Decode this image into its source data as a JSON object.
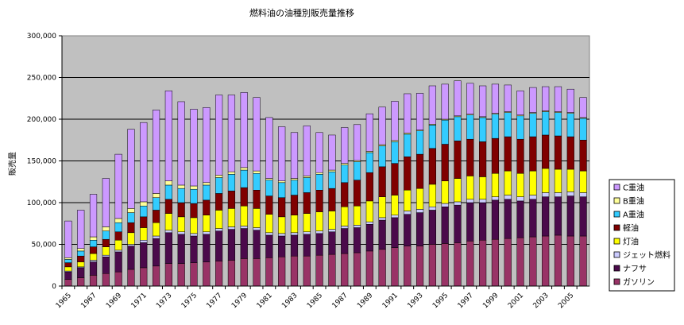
{
  "chart_data": {
    "type": "bar",
    "stacked": true,
    "title": "燃料油の油種別販売量推移",
    "ylabel": "販売量",
    "xlabel": "",
    "ylim": [
      0,
      300000
    ],
    "yticks": [
      0,
      50000,
      100000,
      150000,
      200000,
      250000,
      300000
    ],
    "ytick_labels": [
      "0",
      "50,000",
      "100,000",
      "150,000",
      "200,000",
      "250,000",
      "300,000"
    ],
    "grid": true,
    "legend_position": "right",
    "categories": [
      "1965",
      "1966",
      "1967",
      "1968",
      "1969",
      "1970",
      "1971",
      "1972",
      "1973",
      "1974",
      "1975",
      "1976",
      "1977",
      "1978",
      "1979",
      "1980",
      "1981",
      "1982",
      "1983",
      "1984",
      "1985",
      "1986",
      "1987",
      "1988",
      "1989",
      "1990",
      "1991",
      "1992",
      "1993",
      "1994",
      "1995",
      "1996",
      "1997",
      "1998",
      "1999",
      "2000",
      "2001",
      "2002",
      "2003",
      "2004",
      "2005",
      "2006"
    ],
    "xtick_labels": [
      "1965",
      "",
      "1967",
      "",
      "1969",
      "",
      "1971",
      "",
      "1973",
      "",
      "1975",
      "",
      "1977",
      "",
      "1979",
      "",
      "1981",
      "",
      "1983",
      "",
      "1985",
      "",
      "1987",
      "",
      "1989",
      "",
      "1991",
      "",
      "1993",
      "",
      "1995",
      "",
      "1997",
      "",
      "1999",
      "",
      "2001",
      "",
      "2003",
      "",
      "2005",
      ""
    ],
    "series": [
      {
        "name": "ガソリン",
        "color": "#993366",
        "values": [
          8000,
          10000,
          13000,
          15000,
          17000,
          20000,
          22000,
          24000,
          27000,
          27000,
          28000,
          29000,
          30000,
          31000,
          33000,
          33000,
          34000,
          35000,
          36000,
          36000,
          37000,
          38000,
          39000,
          40000,
          42000,
          44000,
          46000,
          48000,
          48000,
          50000,
          51000,
          52000,
          54000,
          55000,
          56000,
          57000,
          58000,
          59000,
          60000,
          61000,
          60000,
          60000
        ]
      },
      {
        "name": "ナフサ",
        "color": "#4B0A4B",
        "values": [
          9000,
          12000,
          16000,
          20000,
          24000,
          28000,
          30000,
          33000,
          37000,
          35000,
          32000,
          33000,
          36000,
          37000,
          36000,
          34000,
          27000,
          25000,
          25000,
          26000,
          26000,
          27000,
          30000,
          30000,
          32000,
          35000,
          36000,
          38000,
          40000,
          41000,
          44000,
          45000,
          46000,
          45000,
          47000,
          47000,
          44000,
          45000,
          47000,
          46000,
          48000,
          47000
        ]
      },
      {
        "name": "ジェット燃料",
        "color": "#CCCCFF",
        "values": [
          1000,
          1000,
          2000,
          2000,
          2000,
          2000,
          3000,
          3000,
          3000,
          3000,
          3000,
          3000,
          3000,
          3000,
          3000,
          3000,
          3000,
          3000,
          3000,
          3000,
          3000,
          3000,
          3000,
          3000,
          3000,
          3000,
          3000,
          4000,
          4000,
          4000,
          4000,
          4000,
          4000,
          4000,
          4000,
          5000,
          5000,
          5000,
          5000,
          5000,
          5000,
          5000
        ]
      },
      {
        "name": "灯油",
        "color": "#FFFF00",
        "values": [
          5000,
          6000,
          8000,
          10000,
          12000,
          14000,
          15000,
          16000,
          20000,
          18000,
          19000,
          20000,
          22000,
          22000,
          24000,
          23000,
          22000,
          20000,
          21000,
          22000,
          23000,
          22000,
          23000,
          23000,
          25000,
          25000,
          24000,
          25000,
          25000,
          27000,
          27000,
          28000,
          28000,
          27000,
          28000,
          29000,
          28000,
          29000,
          29000,
          28000,
          27000,
          26000
        ]
      },
      {
        "name": "軽油",
        "color": "#800000",
        "values": [
          5000,
          7000,
          8000,
          9000,
          10000,
          12000,
          13000,
          15000,
          17000,
          17000,
          17000,
          18000,
          20000,
          21000,
          22000,
          22000,
          22000,
          23000,
          24000,
          25000,
          26000,
          27000,
          29000,
          31000,
          34000,
          36000,
          38000,
          40000,
          41000,
          43000,
          44000,
          45000,
          44000,
          42000,
          42000,
          41000,
          41000,
          41000,
          40000,
          40000,
          39000,
          37000
        ]
      },
      {
        "name": "A重油",
        "color": "#33CCFF",
        "values": [
          4000,
          6000,
          8000,
          10000,
          11000,
          12000,
          13000,
          15000,
          17000,
          17000,
          17000,
          18000,
          19000,
          20000,
          21000,
          20000,
          19000,
          18000,
          18000,
          18000,
          19000,
          20000,
          21000,
          22000,
          24000,
          25000,
          26000,
          27000,
          28000,
          28000,
          29000,
          29000,
          29000,
          29000,
          29000,
          29000,
          28000,
          28000,
          28000,
          28000,
          28000,
          26000
        ]
      },
      {
        "name": "B重油",
        "color": "#FFFF99",
        "values": [
          2000,
          3000,
          4000,
          5000,
          5000,
          5000,
          5000,
          5000,
          5000,
          4000,
          4000,
          3000,
          3000,
          3000,
          3000,
          3000,
          2000,
          2000,
          2000,
          2000,
          2000,
          2000,
          2000,
          1500,
          1500,
          1500,
          1500,
          1500,
          1000,
          1000,
          1000,
          1000,
          1000,
          1000,
          1000,
          1000,
          1000,
          1000,
          1000,
          1000,
          1000,
          1000
        ]
      },
      {
        "name": "C重油",
        "color": "#CC99FF",
        "values": [
          44000,
          46000,
          51000,
          58000,
          77000,
          95000,
          95000,
          100000,
          108000,
          100000,
          92000,
          90000,
          96000,
          92000,
          90000,
          88000,
          73000,
          65000,
          55000,
          60000,
          48000,
          42000,
          43000,
          43000,
          45000,
          45000,
          47000,
          47000,
          44000,
          46000,
          42000,
          42000,
          37000,
          37000,
          35000,
          32000,
          29000,
          30000,
          29000,
          30000,
          28000,
          24000
        ]
      }
    ]
  }
}
